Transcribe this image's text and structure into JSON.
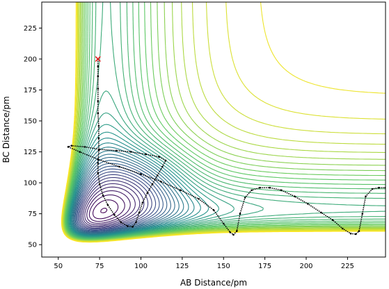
{
  "chart_data": {
    "type": "contour",
    "title": "",
    "xlabel": "AB Distance/pm",
    "ylabel": "BC Distance/pm",
    "xlim": [
      40,
      248
    ],
    "ylim": [
      40,
      246
    ],
    "xticks": [
      50,
      75,
      100,
      125,
      150,
      175,
      200,
      225
    ],
    "yticks": [
      50,
      75,
      100,
      125,
      150,
      175,
      200,
      225
    ],
    "grid": false,
    "colormap": [
      "#440154",
      "#3b528b",
      "#21918c",
      "#5ec962",
      "#fde725"
    ],
    "start_marker": {
      "x": 74,
      "y": 200,
      "symbol": "x",
      "color": "#e41a1c"
    },
    "trajectory": {
      "color": "#000000",
      "points": [
        [
          74,
          200
        ],
        [
          74,
          194
        ],
        [
          74,
          186
        ],
        [
          74,
          176
        ],
        [
          74,
          166
        ],
        [
          74,
          156
        ],
        [
          74.5,
          146
        ],
        [
          74.5,
          136
        ],
        [
          74.5,
          126
        ],
        [
          74,
          116
        ],
        [
          74,
          108
        ],
        [
          75,
          99
        ],
        [
          77,
          90
        ],
        [
          80,
          82
        ],
        [
          84,
          74
        ],
        [
          88,
          68
        ],
        [
          92,
          65
        ],
        [
          95,
          64.5
        ],
        [
          97,
          68
        ],
        [
          99,
          76
        ],
        [
          101,
          84
        ],
        [
          104,
          92
        ],
        [
          107,
          99
        ],
        [
          110,
          106
        ],
        [
          113,
          113
        ],
        [
          115,
          118
        ],
        [
          111,
          121
        ],
        [
          103,
          123
        ],
        [
          94,
          125
        ],
        [
          85,
          126
        ],
        [
          75,
          127
        ],
        [
          66,
          129
        ],
        [
          58,
          130
        ],
        [
          56,
          129
        ],
        [
          63,
          125
        ],
        [
          74,
          119
        ],
        [
          87,
          113
        ],
        [
          100,
          107
        ],
        [
          112,
          101
        ],
        [
          124,
          94
        ],
        [
          135,
          87
        ],
        [
          144,
          78
        ],
        [
          150,
          67
        ],
        [
          154,
          60
        ],
        [
          156,
          58
        ],
        [
          158,
          61
        ],
        [
          160,
          75
        ],
        [
          163,
          88
        ],
        [
          167,
          94
        ],
        [
          172,
          96
        ],
        [
          178,
          96
        ],
        [
          185,
          94
        ],
        [
          193,
          89
        ],
        [
          201,
          83
        ],
        [
          209,
          76
        ],
        [
          216,
          70
        ],
        [
          222,
          63
        ],
        [
          227,
          59
        ],
        [
          230,
          58.5
        ],
        [
          232,
          61
        ],
        [
          234,
          75
        ],
        [
          236,
          89
        ],
        [
          240,
          95
        ],
        [
          244,
          96
        ],
        [
          248,
          96
        ]
      ]
    },
    "contour_levels": 40
  }
}
